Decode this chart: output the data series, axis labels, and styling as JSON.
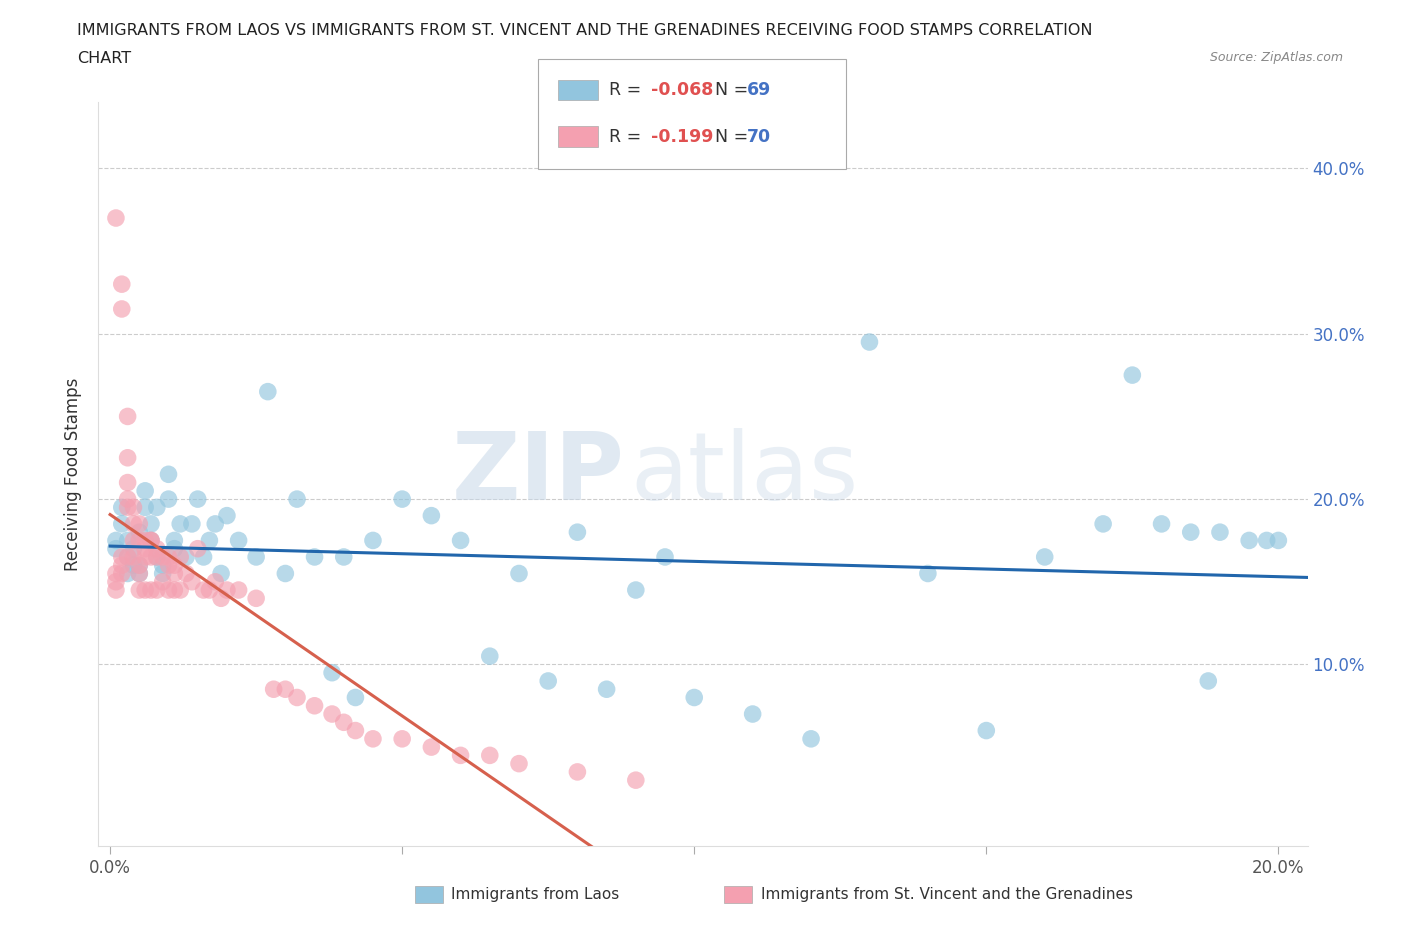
{
  "title_line1": "IMMIGRANTS FROM LAOS VS IMMIGRANTS FROM ST. VINCENT AND THE GRENADINES RECEIVING FOOD STAMPS CORRELATION",
  "title_line2": "CHART",
  "source": "Source: ZipAtlas.com",
  "ylabel": "Receiving Food Stamps",
  "xlim": [
    -0.002,
    0.205
  ],
  "ylim": [
    -0.01,
    0.44
  ],
  "xticks": [
    0.0,
    0.05,
    0.1,
    0.15,
    0.2
  ],
  "xticklabels_show": [
    "0.0%",
    "",
    "",
    "",
    "20.0%"
  ],
  "yticks": [
    0.0,
    0.1,
    0.2,
    0.3,
    0.4
  ],
  "yticklabels_right": [
    "",
    "10.0%",
    "20.0%",
    "30.0%",
    "40.0%"
  ],
  "laos_R": -0.068,
  "laos_N": 69,
  "stv_R": -0.199,
  "stv_N": 70,
  "laos_color": "#92c5de",
  "stv_color": "#f4a0b0",
  "laos_line_color": "#2166ac",
  "stv_line_color": "#d6604d",
  "stv_line_dash": [
    6,
    4
  ],
  "laos_x": [
    0.001,
    0.001,
    0.002,
    0.002,
    0.003,
    0.003,
    0.003,
    0.004,
    0.004,
    0.005,
    0.005,
    0.005,
    0.006,
    0.006,
    0.007,
    0.007,
    0.008,
    0.008,
    0.009,
    0.009,
    0.01,
    0.01,
    0.011,
    0.011,
    0.012,
    0.013,
    0.014,
    0.015,
    0.016,
    0.017,
    0.018,
    0.019,
    0.02,
    0.022,
    0.025,
    0.027,
    0.03,
    0.032,
    0.035,
    0.038,
    0.04,
    0.042,
    0.045,
    0.05,
    0.055,
    0.06,
    0.065,
    0.07,
    0.075,
    0.08,
    0.085,
    0.09,
    0.095,
    0.1,
    0.11,
    0.12,
    0.13,
    0.14,
    0.15,
    0.16,
    0.17,
    0.175,
    0.18,
    0.185,
    0.188,
    0.19,
    0.195,
    0.198,
    0.2
  ],
  "laos_y": [
    0.17,
    0.175,
    0.185,
    0.195,
    0.175,
    0.165,
    0.155,
    0.16,
    0.17,
    0.16,
    0.155,
    0.18,
    0.195,
    0.205,
    0.175,
    0.185,
    0.195,
    0.165,
    0.16,
    0.155,
    0.2,
    0.215,
    0.17,
    0.175,
    0.185,
    0.165,
    0.185,
    0.2,
    0.165,
    0.175,
    0.185,
    0.155,
    0.19,
    0.175,
    0.165,
    0.265,
    0.155,
    0.2,
    0.165,
    0.095,
    0.165,
    0.08,
    0.175,
    0.2,
    0.19,
    0.175,
    0.105,
    0.155,
    0.09,
    0.18,
    0.085,
    0.145,
    0.165,
    0.08,
    0.07,
    0.055,
    0.295,
    0.155,
    0.06,
    0.165,
    0.185,
    0.275,
    0.185,
    0.18,
    0.09,
    0.18,
    0.175,
    0.175,
    0.175
  ],
  "stv_x": [
    0.001,
    0.001,
    0.001,
    0.001,
    0.002,
    0.002,
    0.002,
    0.002,
    0.002,
    0.003,
    0.003,
    0.003,
    0.003,
    0.003,
    0.003,
    0.004,
    0.004,
    0.004,
    0.004,
    0.005,
    0.005,
    0.005,
    0.005,
    0.005,
    0.006,
    0.006,
    0.006,
    0.006,
    0.007,
    0.007,
    0.007,
    0.007,
    0.008,
    0.008,
    0.008,
    0.009,
    0.009,
    0.01,
    0.01,
    0.01,
    0.011,
    0.011,
    0.011,
    0.012,
    0.012,
    0.013,
    0.014,
    0.015,
    0.016,
    0.017,
    0.018,
    0.019,
    0.02,
    0.022,
    0.025,
    0.028,
    0.03,
    0.032,
    0.035,
    0.038,
    0.04,
    0.042,
    0.045,
    0.05,
    0.055,
    0.06,
    0.065,
    0.07,
    0.08,
    0.09
  ],
  "stv_y": [
    0.37,
    0.145,
    0.15,
    0.155,
    0.33,
    0.315,
    0.165,
    0.16,
    0.155,
    0.25,
    0.225,
    0.21,
    0.2,
    0.195,
    0.165,
    0.175,
    0.185,
    0.195,
    0.165,
    0.175,
    0.185,
    0.16,
    0.155,
    0.145,
    0.175,
    0.17,
    0.165,
    0.145,
    0.175,
    0.175,
    0.165,
    0.145,
    0.17,
    0.165,
    0.145,
    0.165,
    0.15,
    0.165,
    0.16,
    0.145,
    0.16,
    0.155,
    0.145,
    0.165,
    0.145,
    0.155,
    0.15,
    0.17,
    0.145,
    0.145,
    0.15,
    0.14,
    0.145,
    0.145,
    0.14,
    0.085,
    0.085,
    0.08,
    0.075,
    0.07,
    0.065,
    0.06,
    0.055,
    0.055,
    0.05,
    0.045,
    0.045,
    0.04,
    0.035,
    0.03
  ]
}
